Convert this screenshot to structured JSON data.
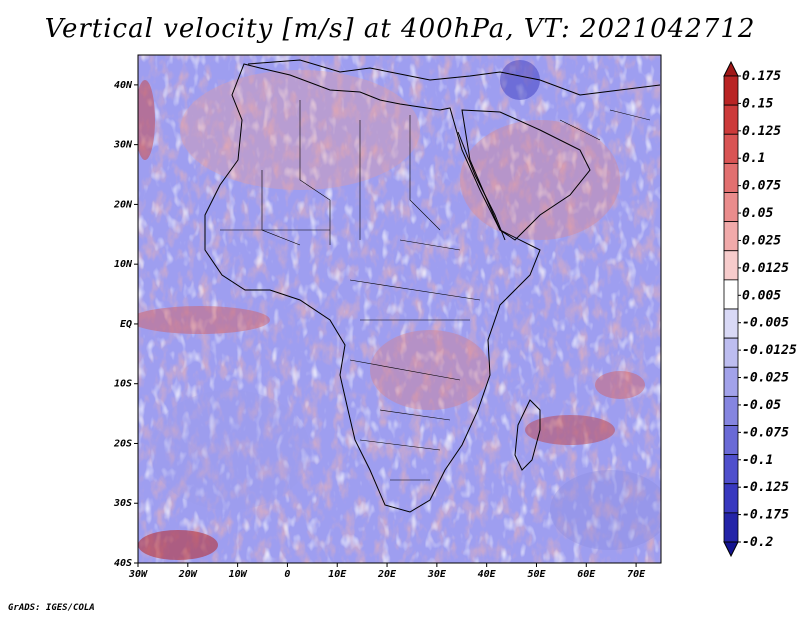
{
  "title": "Vertical velocity [m/s] at 400hPa, VT: 2021042712",
  "credit": "GrADS: IGES/COLA",
  "map": {
    "lon_range": [
      -30,
      75
    ],
    "lat_range": [
      -40,
      45
    ],
    "lat_ticks": [
      {
        "value": 40,
        "label": "40N"
      },
      {
        "value": 30,
        "label": "30N"
      },
      {
        "value": 20,
        "label": "20N"
      },
      {
        "value": 10,
        "label": "10N"
      },
      {
        "value": 0,
        "label": "EQ"
      },
      {
        "value": -10,
        "label": "10S"
      },
      {
        "value": -20,
        "label": "20S"
      },
      {
        "value": -30,
        "label": "30S"
      },
      {
        "value": -40,
        "label": "40S"
      }
    ],
    "lon_ticks": [
      {
        "value": -30,
        "label": "30W"
      },
      {
        "value": -20,
        "label": "20W"
      },
      {
        "value": -10,
        "label": "10W"
      },
      {
        "value": 0,
        "label": "0"
      },
      {
        "value": 10,
        "label": "10E"
      },
      {
        "value": 20,
        "label": "20E"
      },
      {
        "value": 30,
        "label": "30E"
      },
      {
        "value": 40,
        "label": "40E"
      },
      {
        "value": 50,
        "label": "50E"
      },
      {
        "value": 60,
        "label": "60E"
      },
      {
        "value": 70,
        "label": "70E"
      }
    ]
  },
  "colorbar": {
    "labels": [
      "0.175",
      "0.15",
      "0.125",
      "0.1",
      "0.075",
      "0.05",
      "0.025",
      "0.0125",
      "0.005",
      "-0.005",
      "-0.0125",
      "-0.025",
      "-0.05",
      "-0.075",
      "-0.1",
      "-0.125",
      "-0.175",
      "-0.2"
    ],
    "colors": [
      "#a01818",
      "#b92424",
      "#cc3a3a",
      "#d95454",
      "#e27070",
      "#ea8c8c",
      "#f1aaaa",
      "#f7cccc",
      "#ffffff",
      "#d9d9f6",
      "#bdbdf0",
      "#a2a2ea",
      "#8585e0",
      "#6a6ad6",
      "#4f4fcc",
      "#3838bf",
      "#2424a8",
      "#141490"
    ]
  }
}
